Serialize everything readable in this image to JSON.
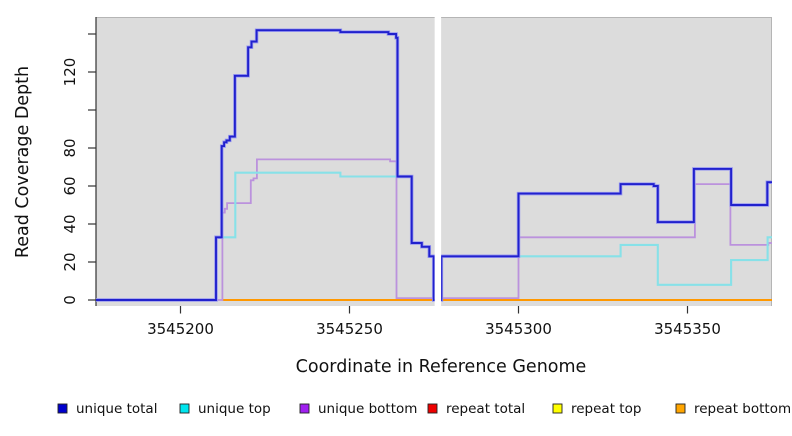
{
  "chart_data": {
    "type": "line",
    "subtype": "step-coverage-plot",
    "title": "",
    "xlabel": "Coordinate in Reference Genome",
    "ylabel": "Read Coverage Depth",
    "xlim": [
      3545175,
      3545375
    ],
    "ylim": [
      0,
      149
    ],
    "grid": "off",
    "panel_background": "#dcdcdc",
    "panel_border_color": "#b5b5b5",
    "axis_color": "#333333",
    "gap": {
      "note": "white vertical no-data band",
      "x_start": 3545275.2,
      "x_end": 3545277.1
    },
    "x_ticks": [
      {
        "value": 3545200,
        "label": "3545200"
      },
      {
        "value": 3545250,
        "label": "3545250"
      },
      {
        "value": 3545300,
        "label": "3545300"
      },
      {
        "value": 3545350,
        "label": "3545350"
      }
    ],
    "y_ticks": [
      {
        "value": 0,
        "label": "0"
      },
      {
        "value": 20,
        "label": "20"
      },
      {
        "value": 40,
        "label": "40"
      },
      {
        "value": 60,
        "label": "60"
      },
      {
        "value": 80,
        "label": "80"
      },
      {
        "value": 100,
        "label": ""
      },
      {
        "value": 120,
        "label": "120"
      },
      {
        "value": 140,
        "label": ""
      }
    ],
    "legend": {
      "position": "bottom",
      "items": [
        {
          "label": "unique total",
          "color": "#0000cd"
        },
        {
          "label": "unique top",
          "color": "#00e5ee"
        },
        {
          "label": "unique bottom",
          "color": "#a020f0"
        },
        {
          "label": "repeat total",
          "color": "#ee0000"
        },
        {
          "label": "repeat top",
          "color": "#ffff00"
        },
        {
          "label": "repeat bottom",
          "color": "#ffa500"
        }
      ]
    },
    "series": [
      {
        "name": "repeat total",
        "color": "#dd2222",
        "width": 1.2,
        "steps": [
          [
            3545212.4,
            0
          ]
        ]
      },
      {
        "name": "repeat top",
        "color": "#f5e900",
        "width": 1.2,
        "steps": [
          [
            3545212.4,
            0
          ]
        ]
      },
      {
        "name": "repeat bottom",
        "color": "#ff9800",
        "width": 1.9,
        "steps": [
          [
            3545212.4,
            0
          ]
        ]
      },
      {
        "name": "unique bottom",
        "color": "#bb92dd",
        "width": 1.8,
        "steps": [
          [
            3545175,
            0
          ],
          [
            3545212.4,
            46
          ],
          [
            3545213.1,
            48
          ],
          [
            3545213.8,
            51
          ],
          [
            3545220.8,
            63
          ],
          [
            3545221.6,
            64
          ],
          [
            3545222.6,
            74
          ],
          [
            3545262,
            73
          ],
          [
            3545263.9,
            1
          ],
          [
            3545300,
            33
          ],
          [
            3545352.2,
            61
          ],
          [
            3545362.7,
            29
          ],
          [
            3545373.9,
            30
          ]
        ]
      },
      {
        "name": "unique top",
        "color": "#87e1e8",
        "width": 2.1,
        "steps": [
          [
            3545175,
            0
          ],
          [
            3545210.5,
            33
          ],
          [
            3545216.2,
            67
          ],
          [
            3545247.3,
            65
          ],
          [
            3545268.4,
            30
          ],
          [
            3545271.4,
            28
          ],
          [
            3545273.6,
            23
          ],
          [
            3545274.9,
            0
          ],
          [
            3545277.2,
            23
          ],
          [
            3545330.2,
            29
          ],
          [
            3545341.2,
            8
          ],
          [
            3545362.9,
            21
          ],
          [
            3545373.7,
            33
          ]
        ]
      },
      {
        "name": "unique total",
        "color": "#2121cd",
        "halo": "#9a9af0",
        "width": 1.9,
        "steps": [
          [
            3545175,
            0
          ],
          [
            3545210.5,
            33
          ],
          [
            3545212.2,
            81
          ],
          [
            3545212.9,
            83
          ],
          [
            3545213.6,
            84
          ],
          [
            3545214.6,
            86
          ],
          [
            3545216.1,
            118
          ],
          [
            3545220,
            133
          ],
          [
            3545221,
            136
          ],
          [
            3545222.5,
            142
          ],
          [
            3545247.3,
            141
          ],
          [
            3545261.5,
            140
          ],
          [
            3545263.8,
            138
          ],
          [
            3545264.2,
            65
          ],
          [
            3545268.4,
            30
          ],
          [
            3545271.4,
            28
          ],
          [
            3545273.6,
            23
          ],
          [
            3545274.9,
            0
          ],
          [
            3545277.2,
            23
          ],
          [
            3545300,
            56
          ],
          [
            3545330.2,
            61
          ],
          [
            3545340,
            60
          ],
          [
            3545341.2,
            41
          ],
          [
            3545351.9,
            69
          ],
          [
            3545362.9,
            50
          ],
          [
            3545373.6,
            62
          ]
        ]
      }
    ]
  }
}
